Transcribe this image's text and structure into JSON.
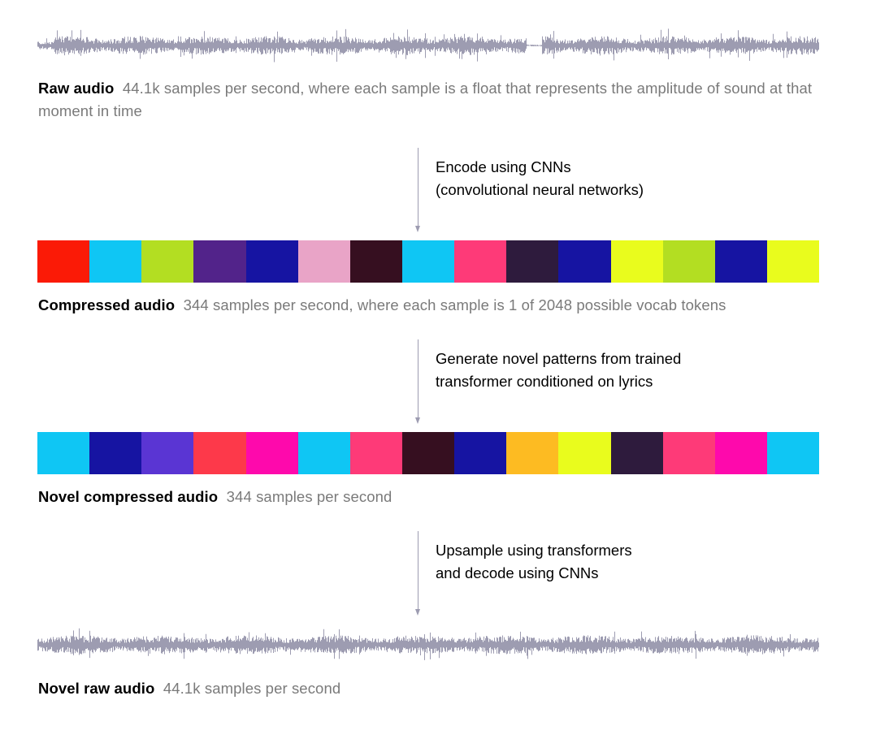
{
  "raw_audio": {
    "title": "Raw audio",
    "description": "44.1k samples per second, where each sample is a float that represents the amplitude of sound at that moment in time"
  },
  "encode_step": {
    "label": "Encode using CNNs\n(convolutional neural networks)"
  },
  "compressed_audio": {
    "title": "Compressed audio",
    "description": "344 samples per second, where each sample is 1 of 2048 possible vocab tokens",
    "token_colors": [
      "#fb1a06",
      "#0fc6f4",
      "#b3de22",
      "#52238a",
      "#1614a2",
      "#e9a4c7",
      "#360f20",
      "#0fc6f4",
      "#fe3a78",
      "#2e1b3d",
      "#1614a2",
      "#e9fc1d",
      "#b3de22",
      "#1614a2",
      "#e9fc1d"
    ]
  },
  "generate_step": {
    "label": "Generate novel patterns from trained\ntransformer conditioned on lyrics"
  },
  "novel_compressed_audio": {
    "title": "Novel compressed audio",
    "description": "344 samples per second",
    "token_colors": [
      "#0fc6f4",
      "#1614a2",
      "#5a35d3",
      "#fd394a",
      "#fe09ac",
      "#0fc6f4",
      "#fe3a78",
      "#360f20",
      "#1614a2",
      "#fdbb22",
      "#e9fc1d",
      "#2e1b3d",
      "#fe3a78",
      "#fe09ac",
      "#0fc6f4"
    ]
  },
  "upsample_step": {
    "label": "Upsample using transformers\nand decode using CNNs"
  },
  "novel_raw_audio": {
    "title": "Novel raw audio",
    "description": "44.1k samples per second"
  },
  "colors": {
    "waveform": "#9d9cb1",
    "arrow": "#9d9cb1",
    "caption_description": "#7a7a7a"
  }
}
